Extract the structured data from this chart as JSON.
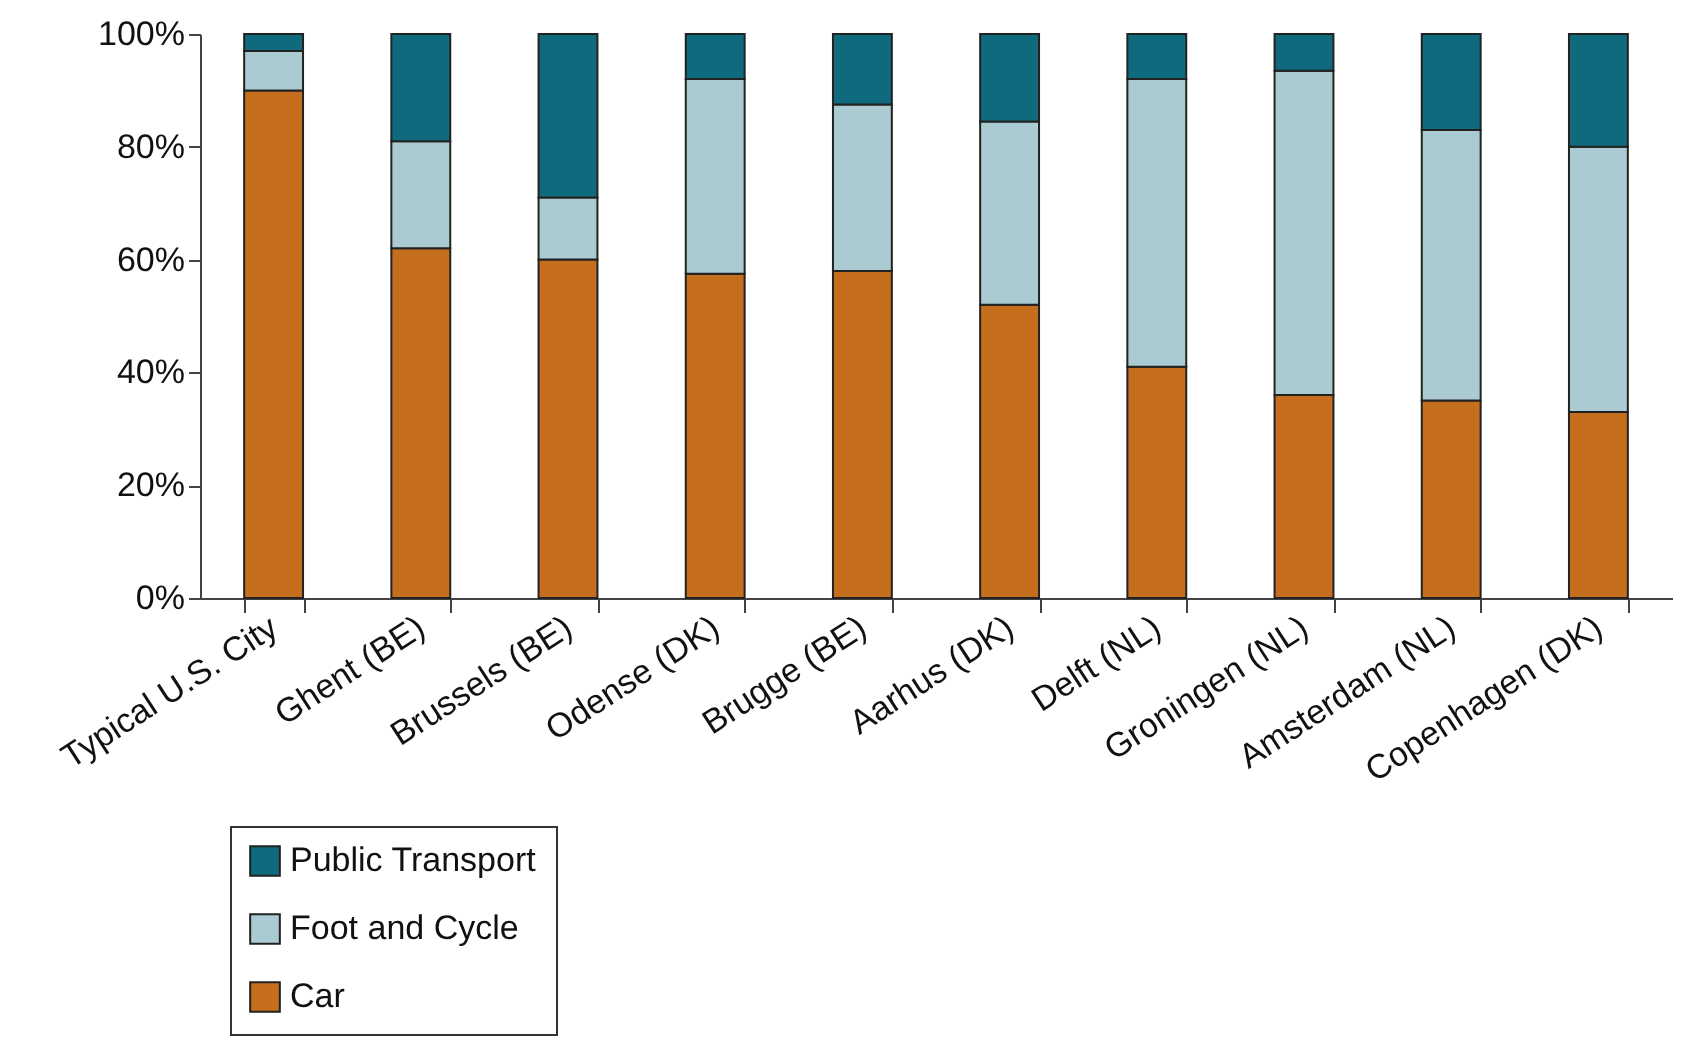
{
  "chart_data": {
    "type": "bar",
    "stacked": true,
    "categories": [
      "Typical U.S. City",
      "Ghent (BE)",
      "Brussels (BE)",
      "Odense (DK)",
      "Brugge (BE)",
      "Aarhus (DK)",
      "Delft (NL)",
      "Groningen (NL)",
      "Amsterdam (NL)",
      "Copenhagen (DK)"
    ],
    "series": [
      {
        "name": "Car",
        "color": "#c46e1e",
        "values": [
          90,
          62,
          60,
          57.5,
          58,
          52,
          41,
          36,
          35,
          33
        ]
      },
      {
        "name": "Foot and Cycle",
        "color": "#abcbd2",
        "values": [
          7,
          19,
          11,
          34.5,
          29.5,
          32.5,
          51,
          57.5,
          48,
          47
        ]
      },
      {
        "name": "Public Transport",
        "color": "#0f6a7e",
        "values": [
          3,
          19,
          29,
          8,
          12.5,
          15.5,
          8,
          6.5,
          17,
          20
        ]
      }
    ],
    "ylim": [
      0,
      100
    ],
    "yticks": [
      {
        "value": 0,
        "label": "0%"
      },
      {
        "value": 20,
        "label": "20%"
      },
      {
        "value": 40,
        "label": "40%"
      },
      {
        "value": 60,
        "label": "60%"
      },
      {
        "value": 80,
        "label": "80%"
      },
      {
        "value": 100,
        "label": "100%"
      }
    ],
    "grid": false,
    "legend": "bottom left"
  }
}
